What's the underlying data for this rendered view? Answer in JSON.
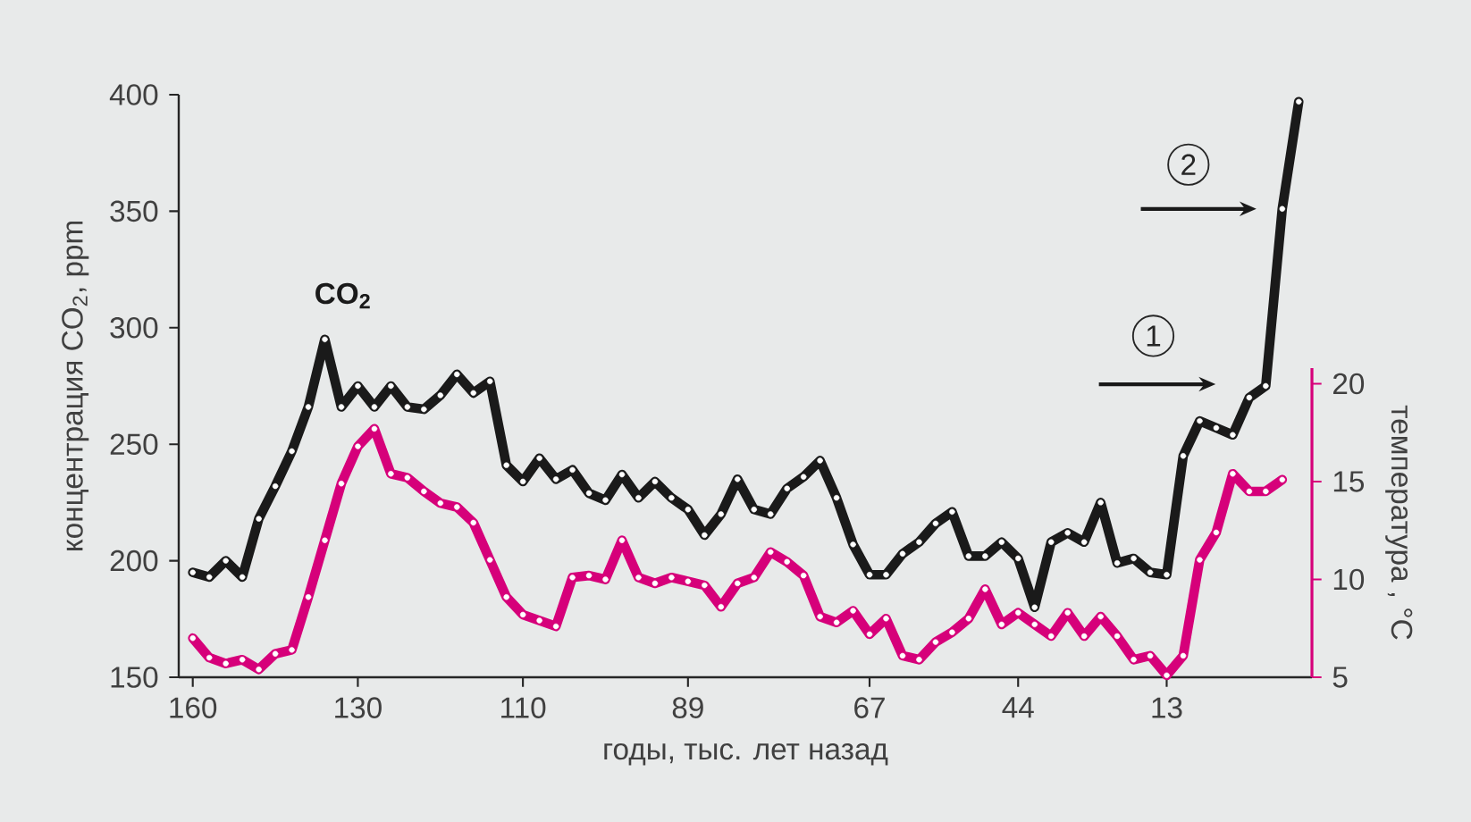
{
  "chart_data": {
    "type": "line",
    "xlabel": "годы, тыс. лет назад",
    "ylabel": "концентрация CO$_{2}$, ppm",
    "y2label": "температура , °C",
    "categories": [
      "160",
      null,
      null,
      null,
      null,
      null,
      null,
      null,
      null,
      null,
      "130",
      null,
      null,
      null,
      null,
      null,
      null,
      null,
      null,
      null,
      "110",
      null,
      null,
      null,
      null,
      null,
      null,
      null,
      null,
      null,
      "89",
      null,
      null,
      null,
      null,
      null,
      null,
      null,
      null,
      null,
      null,
      "67",
      null,
      null,
      null,
      null,
      null,
      null,
      null,
      null,
      "44",
      null,
      null,
      null,
      null,
      null,
      null,
      null,
      null,
      "13",
      null,
      null,
      null,
      null,
      null,
      null,
      null,
      null
    ],
    "series": [
      {
        "name": "CO$_{2}$",
        "color": "#1a1a1a",
        "values": [
          195,
          193,
          200,
          193,
          218,
          232,
          247,
          266,
          295,
          266,
          275,
          266,
          275,
          266,
          265,
          271,
          280,
          272,
          277,
          241,
          234,
          244,
          235,
          239,
          229,
          226,
          237,
          227,
          234,
          227,
          222,
          211,
          220,
          235,
          222,
          220,
          231,
          236,
          243,
          227,
          207,
          194,
          194,
          203,
          208,
          216,
          221,
          202,
          202,
          208,
          201,
          180,
          208,
          212,
          208,
          225,
          199,
          201,
          195,
          194,
          245,
          260,
          257,
          254,
          270,
          275,
          351,
          397
        ]
      },
      {
        "color": "#d6007a",
        "axis": "y2",
        "values": [
          7.0,
          6.0,
          5.7,
          5.9,
          5.4,
          6.2,
          6.4,
          9.1,
          12.0,
          14.9,
          16.8,
          17.7,
          15.4,
          15.2,
          14.5,
          13.9,
          13.7,
          12.9,
          11.0,
          9.1,
          8.2,
          7.9,
          7.6,
          10.1,
          10.2,
          10.0,
          12.0,
          10.1,
          9.8,
          10.1,
          9.9,
          9.7,
          8.6,
          9.8,
          10.1,
          11.4,
          10.9,
          10.2,
          8.1,
          7.8,
          8.4,
          7.2,
          8.0,
          6.1,
          5.9,
          6.8,
          7.3,
          8.0,
          9.5,
          7.7,
          8.3,
          7.7,
          7.1,
          8.3,
          7.1,
          8.1,
          7.1,
          5.9,
          6.1,
          5.1,
          6.1,
          11.0,
          12.4,
          15.4,
          14.5,
          14.5,
          15.1,
          null
        ]
      }
    ],
    "ylim": [
      150,
      400
    ],
    "yticks": [
      150,
      200,
      250,
      300,
      350,
      400
    ],
    "y2lim": [
      5,
      20.8
    ],
    "y2ticks": [
      5,
      10,
      15,
      20
    ],
    "marker": "circle",
    "line_style": "solid",
    "annotations": [
      "1",
      "2"
    ]
  }
}
